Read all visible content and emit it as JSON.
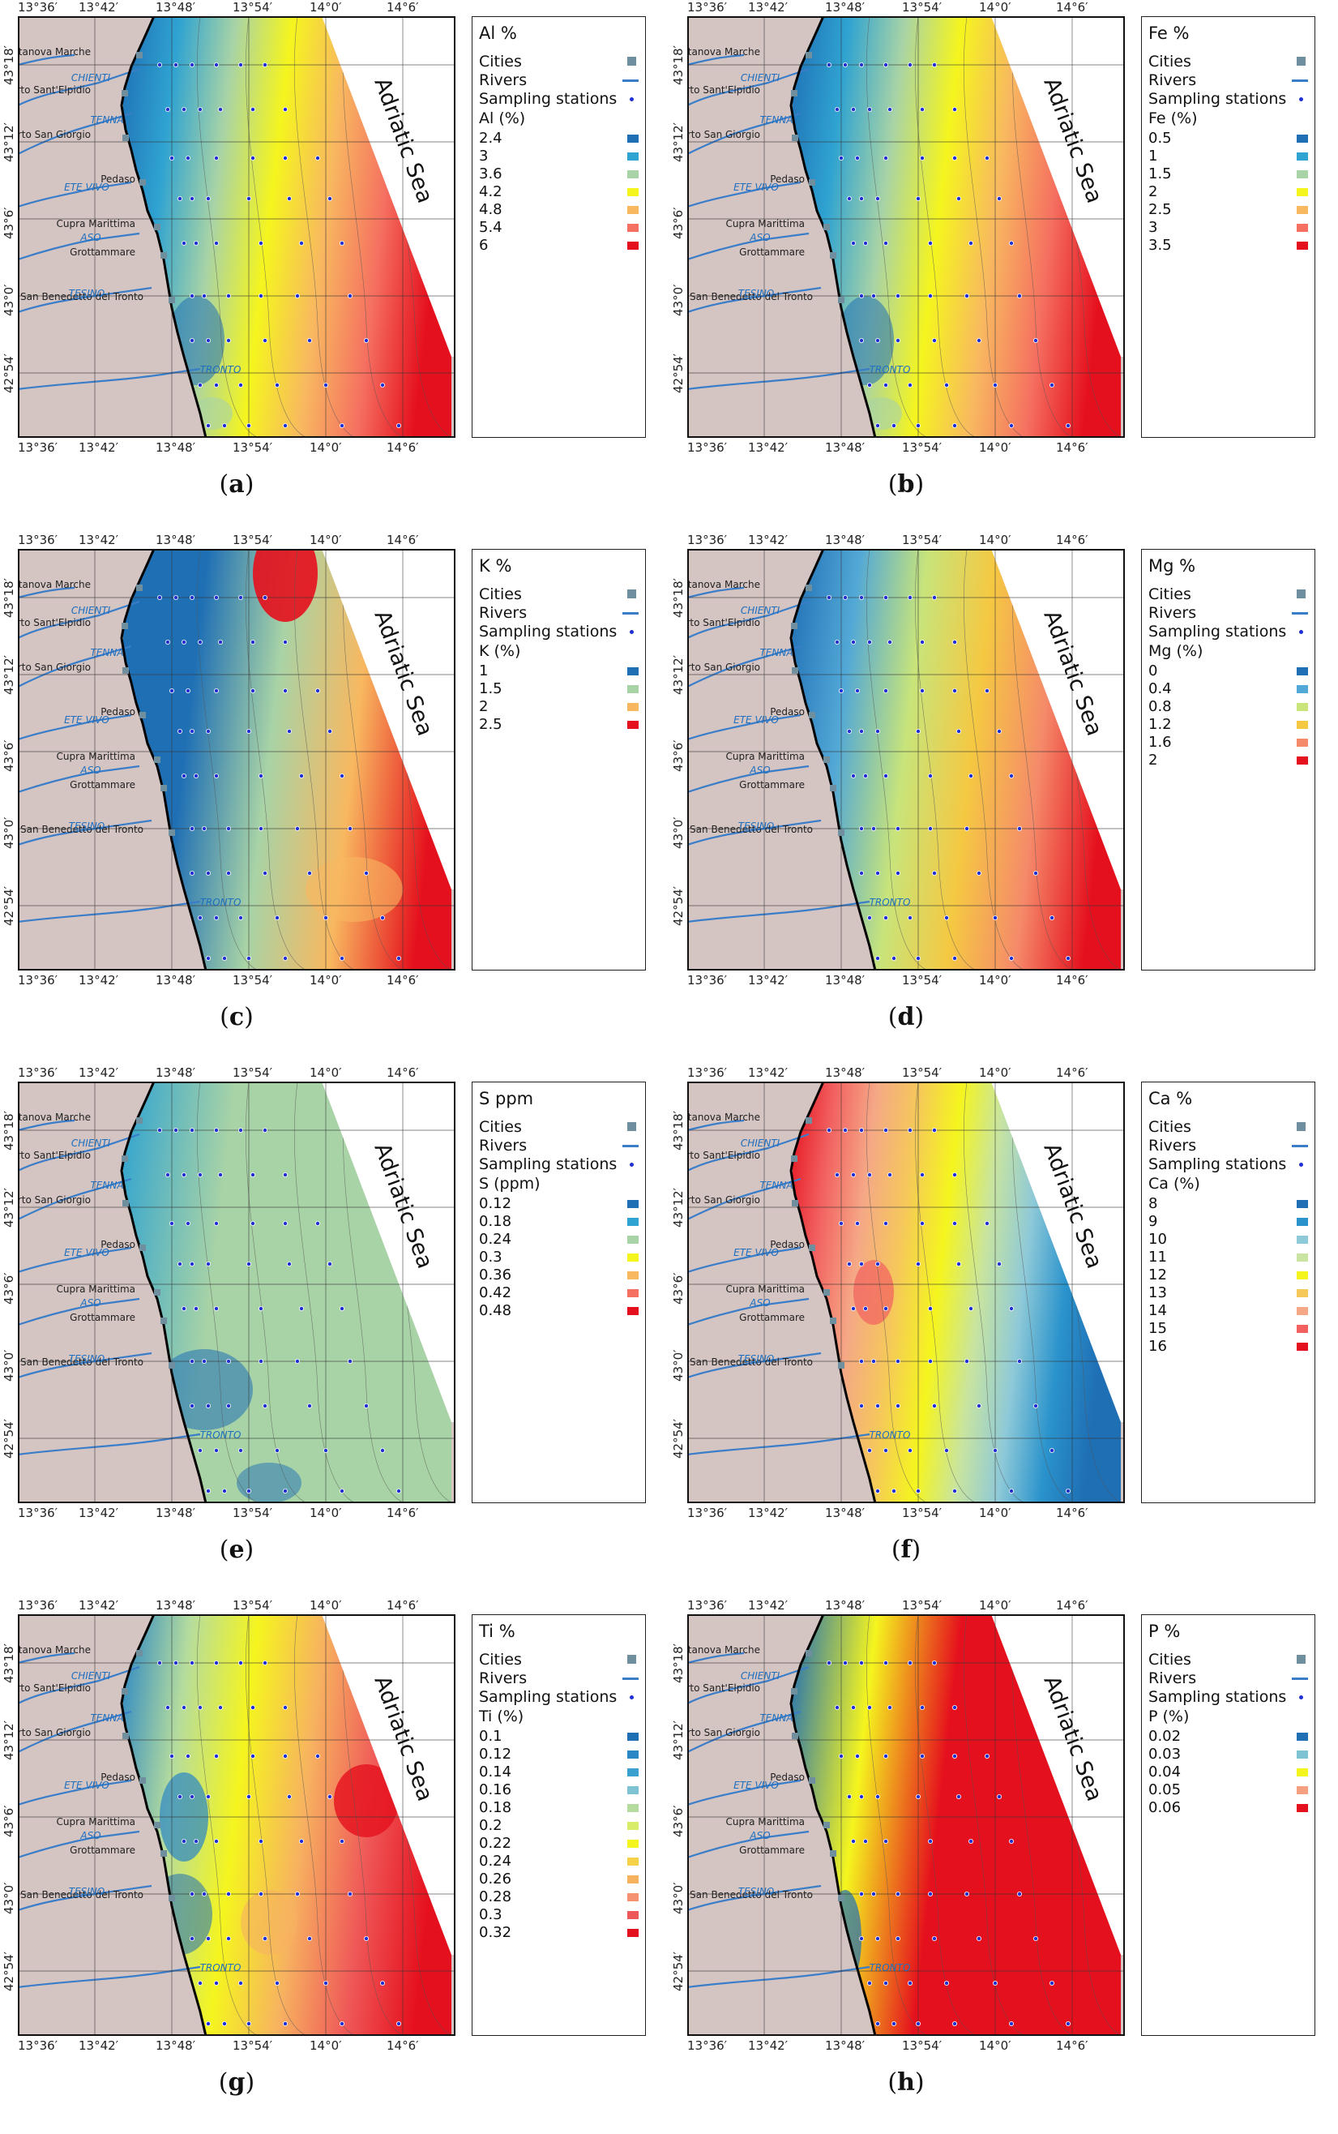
{
  "figure": {
    "lon_ticks": [
      "13°36′",
      "13°42′",
      "13°48′",
      "13°54′",
      "14°0′",
      "14°6′"
    ],
    "lat_ticks": [
      "43°18′",
      "43°12′",
      "43°6′",
      "43°0′",
      "42°54′"
    ],
    "cities": [
      "Civitanova Marche",
      "Porto Sant'Elpidio",
      "Porto San Giorgio",
      "Pedaso",
      "Cupra Marittima",
      "Grottammare",
      "San Benedetto del Tronto"
    ],
    "rivers": [
      "CHIENTI",
      "TENNA",
      "ETE VIVO",
      "ASO",
      "TESINO",
      "TRONTO"
    ],
    "sea_label": "Adriatic Sea",
    "legend_common": {
      "cities": "Cities",
      "rivers": "Rivers",
      "stations": "Sampling stations"
    },
    "colors": {
      "river": "#3a7dc9",
      "land": "#d4c4c2",
      "coast": "#000000",
      "station": "#1f2fd1",
      "city": "#6f8f9f"
    },
    "panels": [
      {
        "letter": "a",
        "title": "Al %",
        "unit": "Al (%)",
        "classes": [
          "2.4",
          "3",
          "3.6",
          "4.2",
          "4.8",
          "5.4",
          "6"
        ],
        "colors": [
          "#1f6fb5",
          "#2fa3d1",
          "#a8d3a6",
          "#f5f51e",
          "#f8b860",
          "#f57060",
          "#e5101d"
        ],
        "pattern": "ramp_up"
      },
      {
        "letter": "b",
        "title": "Fe %",
        "unit": "Fe (%)",
        "classes": [
          "0.5",
          "1",
          "1.5",
          "2",
          "2.5",
          "3",
          "3.5"
        ],
        "colors": [
          "#1f6fb5",
          "#2fa3d1",
          "#a8d3a6",
          "#f5f51e",
          "#f8b860",
          "#f57060",
          "#e5101d"
        ],
        "pattern": "ramp_up"
      },
      {
        "letter": "c",
        "title": "K %",
        "unit": "K (%)",
        "classes": [
          "1",
          "1.5",
          "2",
          "2.5"
        ],
        "colors": [
          "#1f6fb5",
          "#a8d3a6",
          "#f8b860",
          "#e5101d"
        ],
        "pattern": "k"
      },
      {
        "letter": "d",
        "title": "Mg %",
        "unit": "Mg (%)",
        "classes": [
          "0",
          "0.4",
          "0.8",
          "1.2",
          "1.6",
          "2"
        ],
        "colors": [
          "#1f6fb5",
          "#52a8d6",
          "#c8e47a",
          "#f5c842",
          "#f58a6a",
          "#e5101d"
        ],
        "pattern": "mg"
      },
      {
        "letter": "e",
        "title": "S ppm",
        "unit": "S (ppm)",
        "classes": [
          "0.12",
          "0.18",
          "0.24",
          "0.3",
          "0.36",
          "0.42",
          "0.48"
        ],
        "colors": [
          "#1f6fb5",
          "#2fa3d1",
          "#a8d3a6",
          "#f5f51e",
          "#f8b860",
          "#f57060",
          "#e5101d"
        ],
        "pattern": "s"
      },
      {
        "letter": "f",
        "title": "Ca %",
        "unit": "Ca (%)",
        "classes": [
          "8",
          "9",
          "10",
          "11",
          "12",
          "13",
          "14",
          "15",
          "16"
        ],
        "colors": [
          "#1f6fb5",
          "#2a93cc",
          "#8ec9d8",
          "#c8e4a0",
          "#f5f51e",
          "#f5c85a",
          "#f5a886",
          "#f26060",
          "#e5101d"
        ],
        "pattern": "ca"
      },
      {
        "letter": "g",
        "title": "Ti %",
        "unit": "Ti (%)",
        "classes": [
          "0.1",
          "0.12",
          "0.14",
          "0.16",
          "0.18",
          "0.2",
          "0.22",
          "0.24",
          "0.26",
          "0.28",
          "0.3",
          "0.32"
        ],
        "colors": [
          "#1f6fb5",
          "#2a86c5",
          "#3aa0d0",
          "#7ec3d4",
          "#b5dc9e",
          "#d8ec6a",
          "#f5f51e",
          "#f6d24a",
          "#f7b260",
          "#f59070",
          "#ef5858",
          "#e5101d"
        ],
        "pattern": "ti"
      },
      {
        "letter": "h",
        "title": "P %",
        "unit": "P (%)",
        "classes": [
          "0.02",
          "0.03",
          "0.04",
          "0.05",
          "0.06"
        ],
        "colors": [
          "#1f6fb5",
          "#7ec3d4",
          "#f5f51e",
          "#f5a080",
          "#e5101d"
        ],
        "pattern": "p"
      }
    ]
  }
}
